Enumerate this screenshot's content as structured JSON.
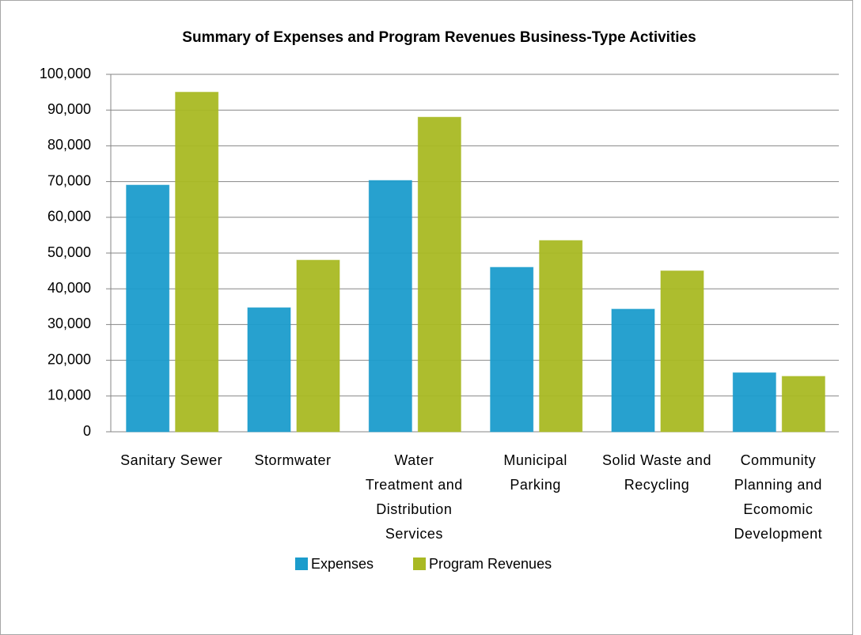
{
  "chart_data": {
    "type": "bar",
    "title": "Summary of Expenses and Program Revenues  Business-Type Activities",
    "categories": [
      "Sanitary Sewer",
      "Stormwater",
      "Water Treatment and Distribution Services",
      "Municipal Parking",
      "Solid Waste and Recycling",
      "Community Planning and Ecomomic Development"
    ],
    "series": [
      {
        "name": "Expenses",
        "color": "#1b9ccc",
        "values": [
          69000,
          34700,
          70300,
          46000,
          34300,
          16500
        ]
      },
      {
        "name": "Program Revenues",
        "color": "#a9b923",
        "values": [
          95000,
          48000,
          88000,
          53500,
          45000,
          15500
        ]
      }
    ],
    "ylim": [
      0,
      100000
    ],
    "yticks": [
      0,
      {
        "value": 10000,
        "label": "10,000"
      },
      {
        "value": 20000,
        "label": "20,000"
      },
      {
        "value": 30000,
        "label": "30,000"
      },
      {
        "value": 40000,
        "label": "40,000"
      },
      {
        "value": 50000,
        "label": "50,000"
      },
      {
        "value": 60000,
        "label": "60,000"
      },
      {
        "value": 70000,
        "label": "70,000"
      },
      {
        "value": 80000,
        "label": "80,000"
      },
      {
        "value": 90000,
        "label": "90,000"
      },
      {
        "value": 100000,
        "label": "100,000"
      }
    ],
    "grid": true,
    "legend": "bottom"
  }
}
